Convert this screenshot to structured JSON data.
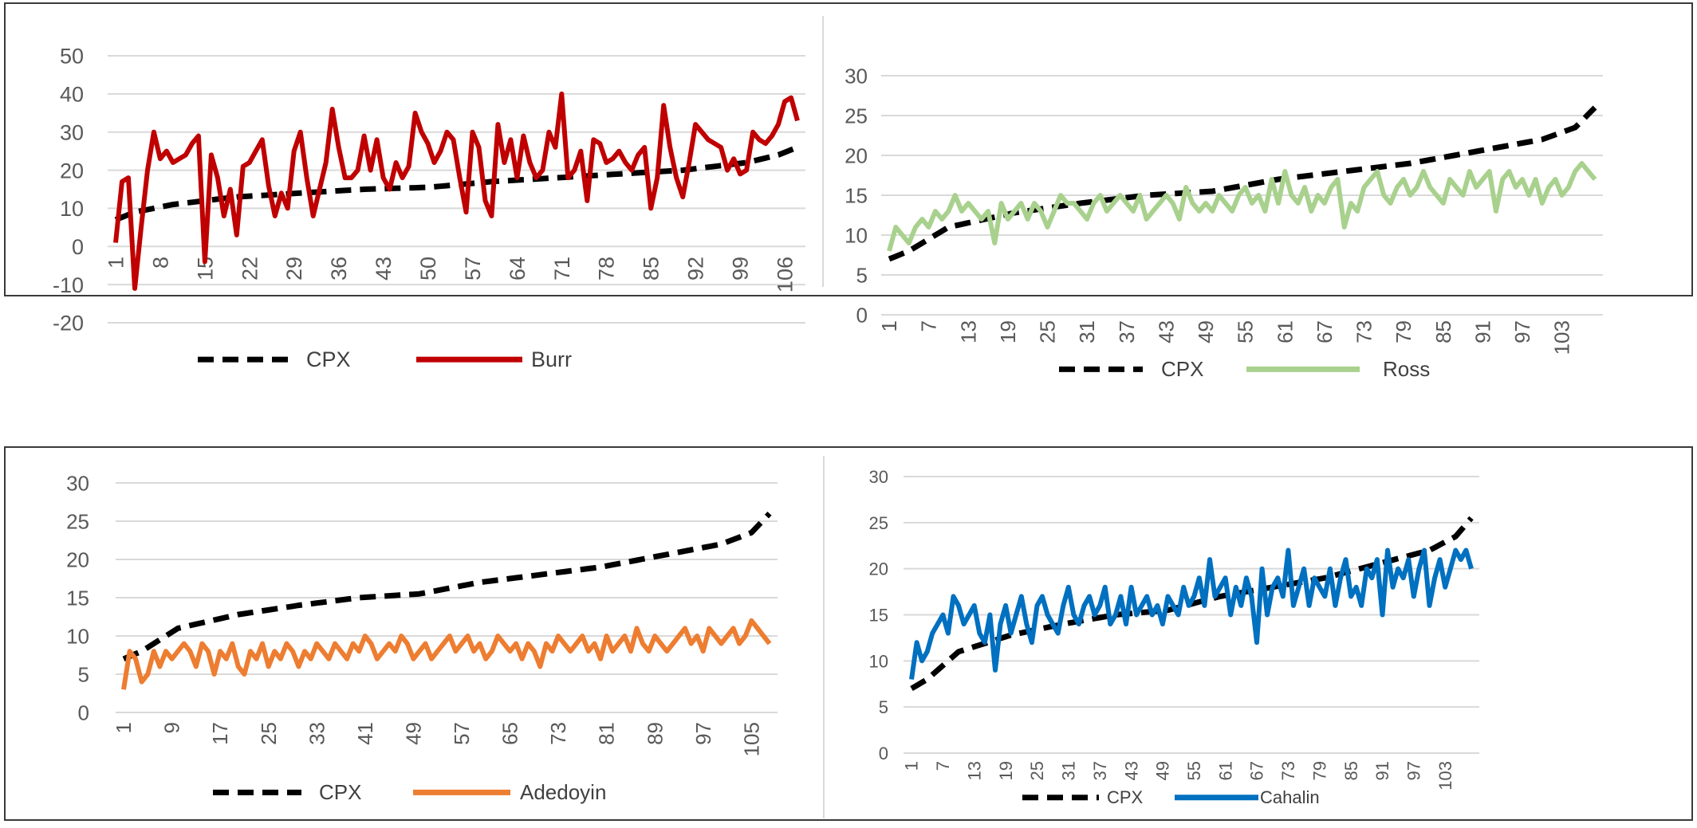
{
  "chart_data": [
    {
      "type": "line",
      "categories_start": 1,
      "categories_end": 108,
      "tick_labels": [
        "1",
        "8",
        "15",
        "22",
        "29",
        "36",
        "43",
        "50",
        "57",
        "64",
        "71",
        "78",
        "85",
        "92",
        "99",
        "106"
      ],
      "ylim": [
        -20,
        50
      ],
      "yticks": [
        -20,
        -10,
        0,
        10,
        20,
        30,
        40,
        50
      ],
      "legend": [
        "CPX",
        "Burr"
      ],
      "series": [
        {
          "name": "CPX",
          "style": "dashed",
          "color": "#000000",
          "anchors": [
            [
              1,
              7
            ],
            [
              4,
              9
            ],
            [
              10,
              11
            ],
            [
              20,
              13
            ],
            [
              30,
              14
            ],
            [
              40,
              15
            ],
            [
              50,
              15.5
            ],
            [
              60,
              17
            ],
            [
              70,
              18
            ],
            [
              80,
              19
            ],
            [
              90,
              20
            ],
            [
              100,
              22
            ],
            [
              105,
              24
            ],
            [
              108,
              26
            ]
          ]
        },
        {
          "name": "Burr",
          "style": "solid",
          "color": "#c00000",
          "values": [
            1,
            17,
            18,
            -11,
            5,
            20,
            30,
            23,
            25,
            22,
            23,
            24,
            27,
            29,
            -4,
            24,
            18,
            8,
            15,
            3,
            21,
            22,
            25,
            28,
            16,
            8,
            14,
            10,
            25,
            30,
            18,
            8,
            15,
            22,
            36,
            26,
            18,
            18,
            20,
            29,
            20,
            28,
            18,
            15,
            22,
            18,
            21,
            35,
            30,
            27,
            22,
            25,
            30,
            28,
            18,
            9,
            30,
            26,
            12,
            8,
            32,
            22,
            28,
            18,
            29,
            22,
            18,
            20,
            30,
            26,
            40,
            18,
            20,
            25,
            12,
            28,
            27,
            22,
            23,
            25,
            22,
            20,
            24,
            26,
            10,
            18,
            37,
            26,
            18,
            13,
            22,
            32,
            30,
            28,
            27,
            26,
            20,
            23,
            19,
            20,
            30,
            28,
            27,
            29,
            32,
            38,
            39,
            33
          ]
        }
      ]
    },
    {
      "type": "line",
      "categories_start": 1,
      "categories_end": 108,
      "tick_labels": [
        "1",
        "7",
        "13",
        "19",
        "25",
        "31",
        "37",
        "43",
        "49",
        "55",
        "61",
        "67",
        "73",
        "79",
        "85",
        "91",
        "97",
        "103"
      ],
      "ylim": [
        0,
        30
      ],
      "yticks": [
        0,
        5,
        10,
        15,
        20,
        25,
        30
      ],
      "legend": [
        "CPX",
        "Ross"
      ],
      "series": [
        {
          "name": "CPX",
          "style": "dashed",
          "color": "#000000",
          "anchors": [
            [
              1,
              7
            ],
            [
              4,
              8
            ],
            [
              10,
              11
            ],
            [
              20,
              12.8
            ],
            [
              30,
              14
            ],
            [
              40,
              15
            ],
            [
              50,
              15.5
            ],
            [
              60,
              17
            ],
            [
              70,
              18
            ],
            [
              80,
              19
            ],
            [
              90,
              20.5
            ],
            [
              100,
              22
            ],
            [
              105,
              23.5
            ],
            [
              108,
              26
            ]
          ]
        },
        {
          "name": "Ross",
          "style": "solid",
          "color": "#a9d18e",
          "values": [
            8,
            11,
            10,
            9,
            11,
            12,
            11,
            13,
            12,
            13,
            15,
            13,
            14,
            13,
            12,
            13,
            9,
            14,
            12,
            13,
            14,
            12,
            14,
            13,
            11,
            13,
            15,
            14,
            14,
            13,
            12,
            14,
            15,
            13,
            14,
            15,
            14,
            13,
            15,
            12,
            13,
            14,
            15,
            14,
            12,
            16,
            14,
            13,
            14,
            13,
            15,
            14,
            13,
            15,
            16,
            14,
            15,
            13,
            17,
            14,
            18,
            15,
            14,
            16,
            13,
            15,
            14,
            16,
            17,
            11,
            14,
            13,
            16,
            17,
            18,
            15,
            14,
            16,
            17,
            15,
            16,
            18,
            16,
            15,
            14,
            17,
            16,
            15,
            18,
            16,
            17,
            18,
            13,
            17,
            18,
            16,
            17,
            15,
            17,
            14,
            16,
            17,
            15,
            16,
            18,
            19,
            18,
            17
          ]
        }
      ]
    },
    {
      "type": "line",
      "categories_start": 1,
      "categories_end": 108,
      "tick_labels": [
        "1",
        "9",
        "17",
        "25",
        "33",
        "41",
        "49",
        "57",
        "65",
        "73",
        "81",
        "89",
        "97",
        "105"
      ],
      "ylim": [
        0,
        30
      ],
      "yticks": [
        0,
        5,
        10,
        15,
        20,
        25,
        30
      ],
      "legend": [
        "CPX",
        "Adedoyin"
      ],
      "series": [
        {
          "name": "CPX",
          "style": "dashed",
          "color": "#000000",
          "anchors": [
            [
              1,
              7
            ],
            [
              4,
              8
            ],
            [
              10,
              11
            ],
            [
              20,
              12.8
            ],
            [
              30,
              14
            ],
            [
              40,
              15
            ],
            [
              50,
              15.5
            ],
            [
              60,
              17
            ],
            [
              70,
              18
            ],
            [
              80,
              19
            ],
            [
              90,
              20.5
            ],
            [
              100,
              22
            ],
            [
              105,
              23.5
            ],
            [
              108,
              26
            ]
          ]
        },
        {
          "name": "Adedoyin",
          "style": "solid",
          "color": "#ed7d31",
          "values": [
            3,
            8,
            7,
            4,
            5,
            8,
            6,
            8,
            7,
            8,
            9,
            8,
            6,
            9,
            8,
            5,
            8,
            7,
            9,
            6,
            5,
            8,
            7,
            9,
            6,
            8,
            7,
            9,
            8,
            6,
            8,
            7,
            9,
            8,
            7,
            9,
            8,
            7,
            9,
            8,
            10,
            9,
            7,
            8,
            9,
            8,
            10,
            9,
            7,
            8,
            9,
            7,
            8,
            9,
            10,
            8,
            9,
            10,
            8,
            9,
            7,
            8,
            10,
            9,
            8,
            9,
            7,
            9,
            8,
            6,
            9,
            8,
            10,
            9,
            8,
            9,
            10,
            8,
            9,
            7,
            10,
            8,
            9,
            10,
            8,
            11,
            9,
            8,
            10,
            9,
            8,
            9,
            10,
            11,
            9,
            10,
            8,
            11,
            10,
            9,
            10,
            11,
            9,
            10,
            12,
            11,
            10,
            9
          ]
        }
      ]
    },
    {
      "type": "line",
      "categories_start": 1,
      "categories_end": 108,
      "tick_labels": [
        "1",
        "7",
        "13",
        "19",
        "25",
        "31",
        "37",
        "43",
        "49",
        "55",
        "61",
        "67",
        "73",
        "79",
        "85",
        "91",
        "97",
        "103"
      ],
      "ylim": [
        0,
        30
      ],
      "yticks": [
        0,
        5,
        10,
        15,
        20,
        25,
        30
      ],
      "legend": [
        "CPX",
        "Cahalin"
      ],
      "series": [
        {
          "name": "CPX",
          "style": "dashed",
          "color": "#000000",
          "anchors": [
            [
              1,
              7
            ],
            [
              4,
              8
            ],
            [
              10,
              11
            ],
            [
              20,
              12.8
            ],
            [
              30,
              14
            ],
            [
              40,
              15
            ],
            [
              50,
              15.5
            ],
            [
              60,
              17
            ],
            [
              70,
              18
            ],
            [
              80,
              19
            ],
            [
              90,
              20.5
            ],
            [
              100,
              22
            ],
            [
              105,
              23.5
            ],
            [
              108,
              25.5
            ]
          ]
        },
        {
          "name": "Cahalin",
          "style": "solid",
          "color": "#0070c0",
          "values": [
            8,
            12,
            10,
            11,
            13,
            14,
            15,
            13,
            17,
            16,
            14,
            15,
            16,
            13,
            12,
            15,
            9,
            14,
            16,
            13,
            15,
            17,
            14,
            12,
            16,
            17,
            15,
            14,
            13,
            16,
            18,
            15,
            14,
            16,
            17,
            15,
            16,
            18,
            14,
            15,
            17,
            14,
            18,
            15,
            16,
            17,
            15,
            16,
            14,
            17,
            16,
            15,
            18,
            16,
            17,
            19,
            16,
            21,
            17,
            18,
            19,
            15,
            18,
            16,
            19,
            17,
            12,
            20,
            15,
            18,
            19,
            17,
            22,
            16,
            18,
            20,
            16,
            19,
            18,
            17,
            20,
            16,
            19,
            21,
            17,
            18,
            16,
            20,
            19,
            21,
            15,
            22,
            18,
            20,
            19,
            21,
            17,
            20,
            22,
            16,
            19,
            21,
            18,
            20,
            22,
            21,
            22,
            20
          ]
        }
      ]
    }
  ]
}
